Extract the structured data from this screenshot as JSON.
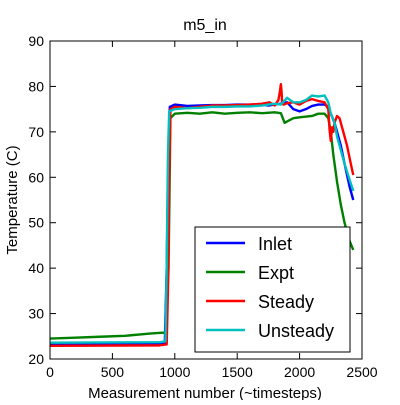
{
  "chart_data": {
    "type": "line",
    "title": "m5_in",
    "xlabel": "Measurement number (~timesteps)",
    "ylabel": "Temperature (C)",
    "xlim": [
      0,
      2500
    ],
    "ylim": [
      20,
      90
    ],
    "xticks": [
      0,
      500,
      1000,
      1500,
      2000,
      2500
    ],
    "yticks": [
      20,
      30,
      40,
      50,
      60,
      70,
      80,
      90
    ],
    "grid": false,
    "legend_position": "lower-right",
    "series": [
      {
        "name": "Inlet",
        "color": "#0000ff",
        "x": [
          0,
          880,
          920,
          935,
          945,
          960,
          1000,
          1100,
          1200,
          1300,
          1400,
          1500,
          1600,
          1700,
          1750,
          1800,
          1850,
          1900,
          1950,
          2000,
          2050,
          2100,
          2150,
          2200,
          2230,
          2250,
          2280,
          2300,
          2330,
          2360,
          2400,
          2430
        ],
        "y": [
          23.2,
          23.3,
          23.4,
          40,
          60,
          75.5,
          76,
          75.7,
          75.8,
          75.9,
          75.9,
          76,
          76,
          76,
          75.8,
          76,
          76.2,
          76.5,
          75,
          74.5,
          75,
          75.7,
          76,
          76,
          75.5,
          74,
          72,
          70,
          67,
          63,
          58,
          55
        ]
      },
      {
        "name": "Expt",
        "color": "#008000",
        "x": [
          0,
          200,
          400,
          600,
          800,
          900,
          930,
          950,
          965,
          1000,
          1100,
          1200,
          1300,
          1400,
          1500,
          1600,
          1700,
          1800,
          1850,
          1880,
          1900,
          1950,
          2000,
          2100,
          2150,
          2200,
          2230,
          2250,
          2270,
          2300,
          2330,
          2360,
          2400,
          2430
        ],
        "y": [
          24.5,
          24.7,
          24.9,
          25.1,
          25.6,
          25.8,
          25.8,
          40,
          73,
          74,
          74.2,
          74,
          74.3,
          74,
          74.2,
          74.3,
          74.1,
          74.3,
          74.1,
          72,
          72.3,
          73,
          73.2,
          73.5,
          74,
          74,
          73,
          70,
          65,
          59,
          54,
          50,
          46,
          44
        ]
      },
      {
        "name": "Steady",
        "color": "#ff0000",
        "x": [
          0,
          880,
          935,
          945,
          955,
          965,
          1000,
          1100,
          1200,
          1300,
          1400,
          1500,
          1600,
          1700,
          1760,
          1800,
          1830,
          1840,
          1850,
          1855,
          1860,
          1870,
          1900,
          1950,
          2000,
          2050,
          2100,
          2150,
          2200,
          2230,
          2240,
          2250,
          2260,
          2270,
          2280,
          2300,
          2320,
          2350,
          2380,
          2410,
          2430
        ],
        "y": [
          22.9,
          23.0,
          23.2,
          35,
          60,
          75,
          75.5,
          75.2,
          75.5,
          75.8,
          75.8,
          75.9,
          76,
          76.2,
          76.5,
          75.8,
          77,
          78.5,
          80.5,
          79,
          76.5,
          76,
          76.3,
          76.5,
          76,
          76.8,
          77.2,
          76.8,
          76.5,
          75,
          70.5,
          68,
          71,
          70,
          72,
          73.5,
          73,
          70,
          67,
          63,
          60.5
        ]
      },
      {
        "name": "Unsteady",
        "color": "#00bfbf",
        "x": [
          0,
          880,
          925,
          935,
          945,
          955,
          1000,
          1100,
          1200,
          1300,
          1400,
          1500,
          1600,
          1700,
          1750,
          1800,
          1850,
          1900,
          1950,
          2000,
          2050,
          2100,
          2150,
          2200,
          2230,
          2250,
          2280,
          2300,
          2330,
          2360,
          2400,
          2430
        ],
        "y": [
          23.6,
          23.7,
          23.9,
          40,
          65,
          74.5,
          75,
          75.2,
          75.3,
          75.5,
          75.5,
          75.6,
          75.6,
          75.8,
          76,
          76.2,
          76,
          77.5,
          76.5,
          76.5,
          77,
          78,
          77.8,
          78,
          76.5,
          74,
          72,
          69,
          66,
          63,
          59.5,
          57
        ]
      }
    ]
  }
}
